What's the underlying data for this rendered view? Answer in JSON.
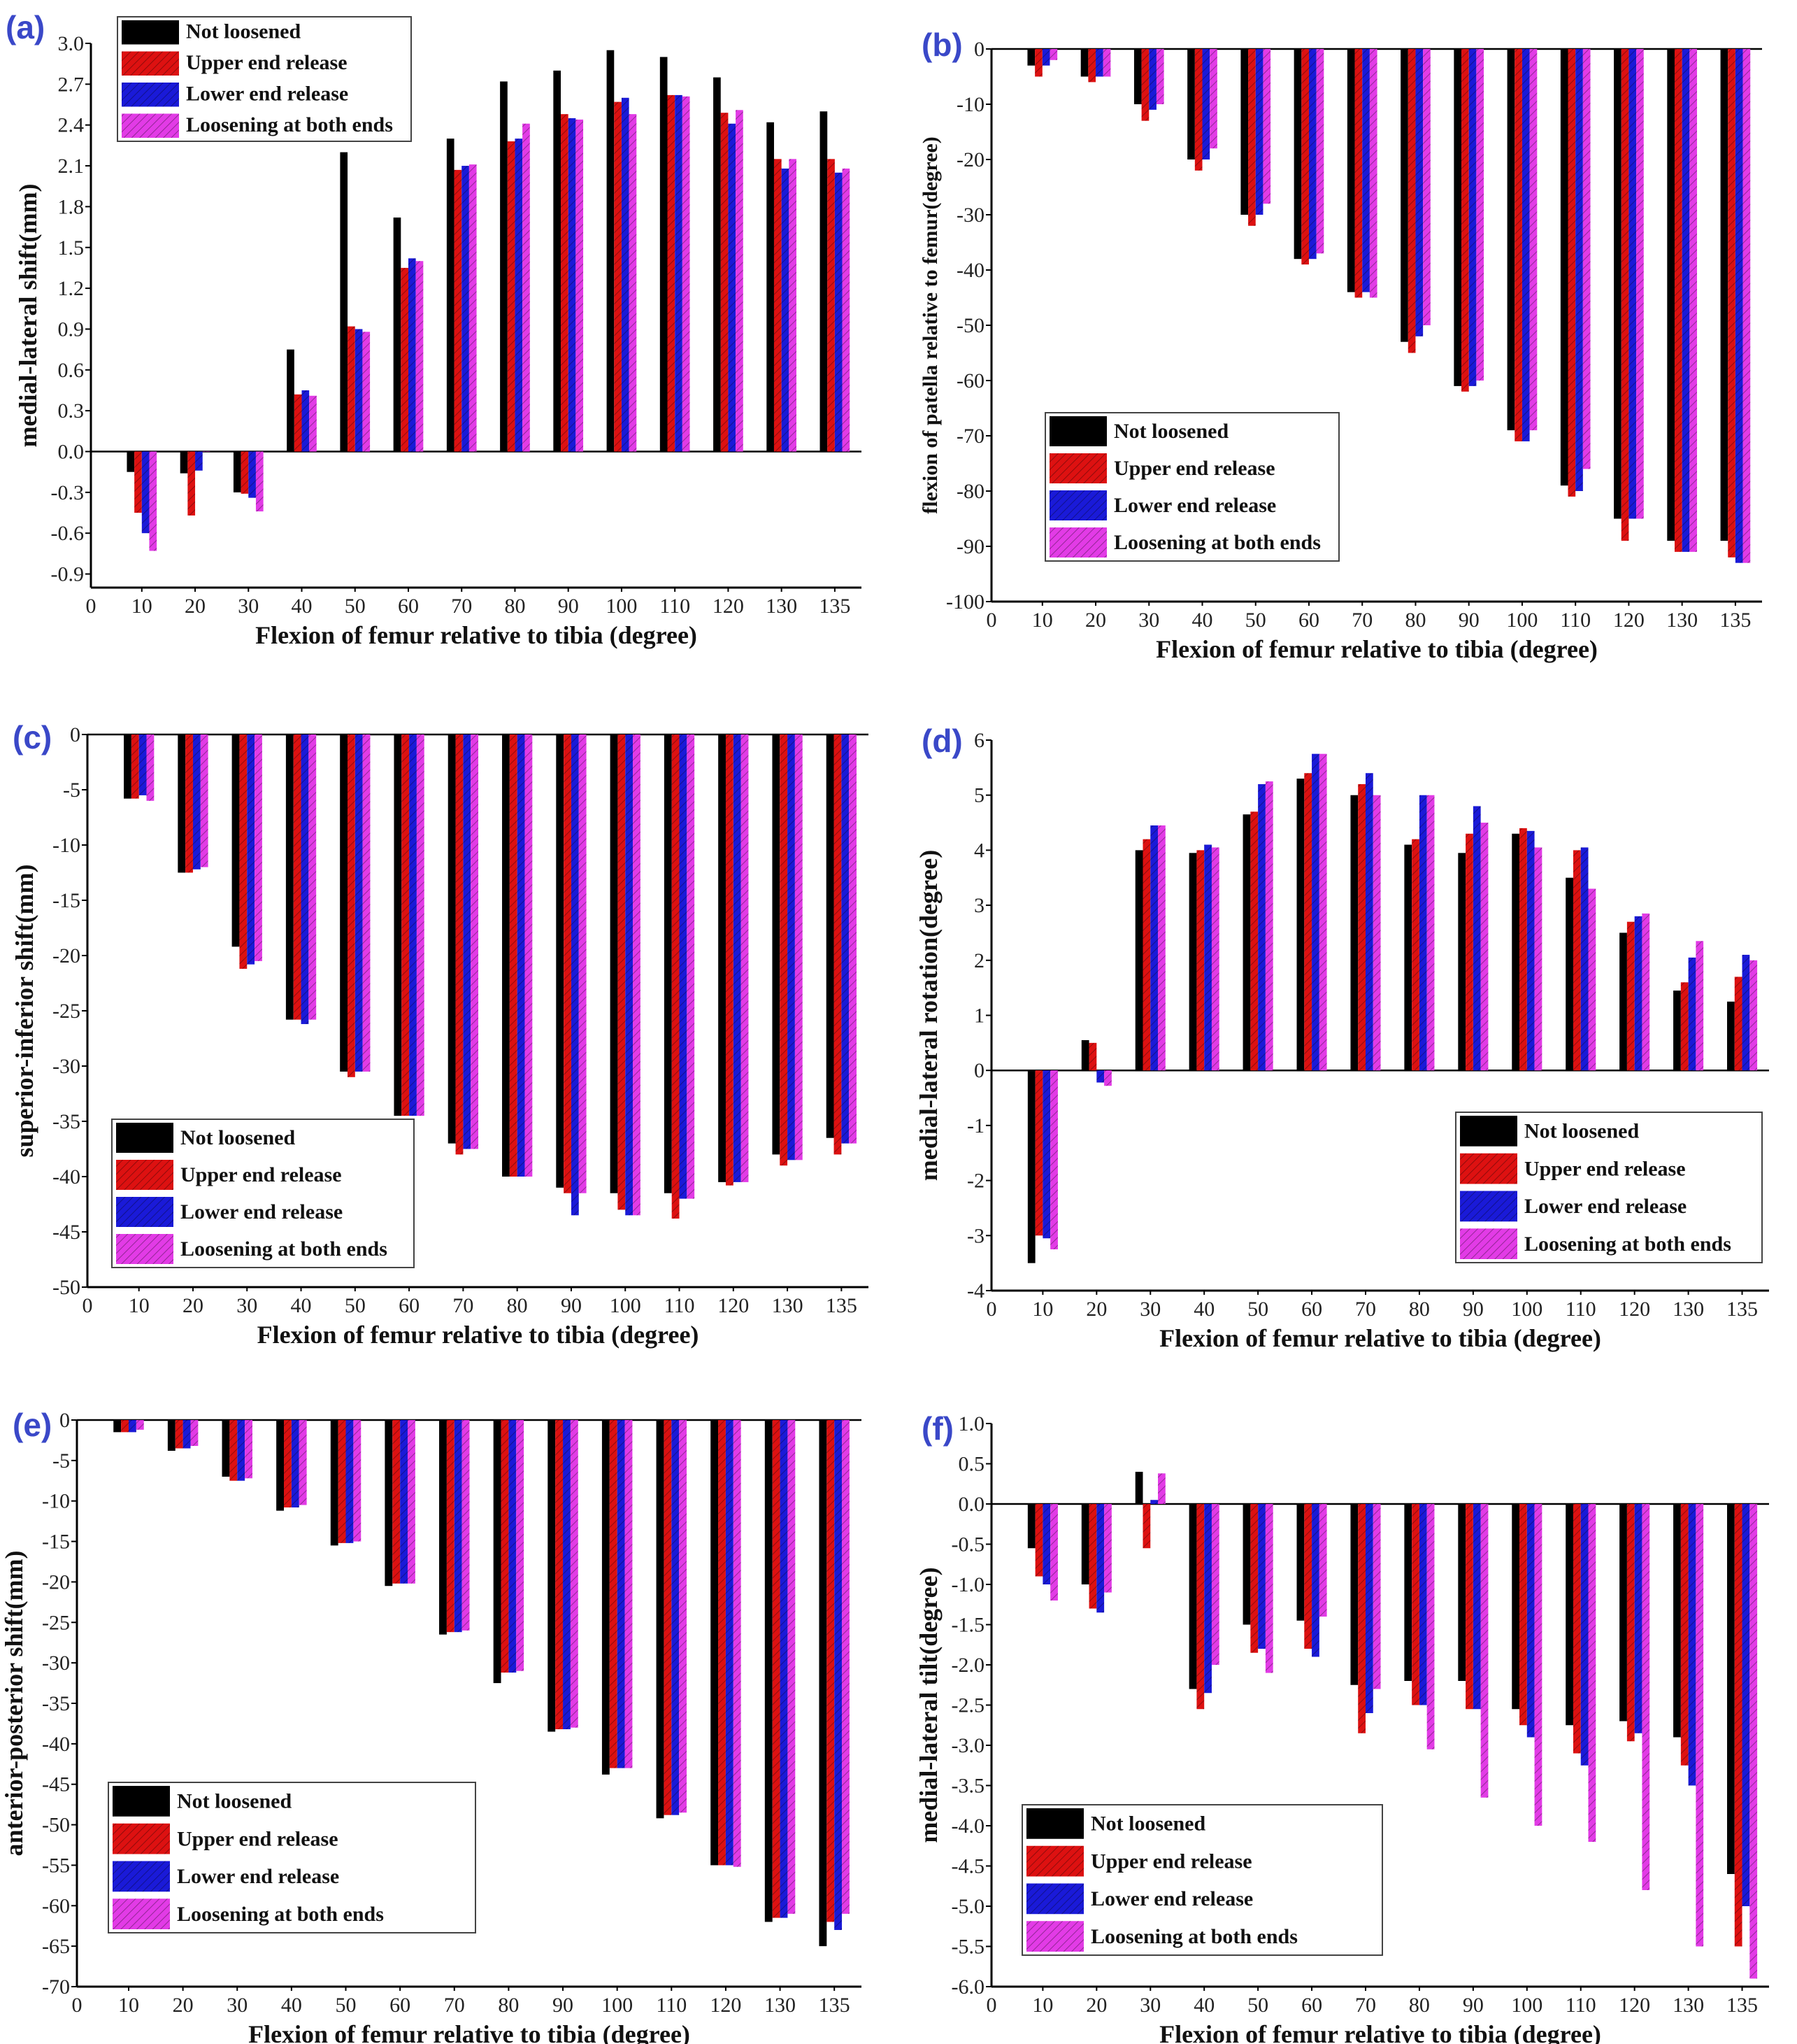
{
  "figure": {
    "series_names": [
      "Not loosened",
      "Upper end release",
      "Lower end release",
      "Loosening at both ends"
    ],
    "series_colors": [
      "#000000",
      "#dd1111",
      "#1a1ad8",
      "#e23be6"
    ],
    "xlabel": "Flexion of femur relative to tibia (degree)"
  },
  "chart_data": [
    {
      "panel": "(a)",
      "type": "bar",
      "ylabel": "medial-lateral shift(mm)",
      "xlabel": "Flexion of femur relative to tibia (degree)",
      "x_zero_label": "0",
      "categories": [
        "10",
        "20",
        "30",
        "40",
        "50",
        "60",
        "70",
        "80",
        "90",
        "100",
        "110",
        "120",
        "130",
        "135"
      ],
      "yticks": [
        "3.0",
        "2.7",
        "2.4",
        "2.1",
        "1.8",
        "1.5",
        "1.2",
        "0.9",
        "0.6",
        "0.3",
        "0.0",
        "-0.3",
        "-0.6",
        "-0.9"
      ],
      "ylim": [
        -1.0,
        3.0
      ],
      "legend_position": "top-left",
      "series": [
        {
          "name": "Not loosened",
          "values": [
            -0.15,
            -0.16,
            -0.3,
            0.75,
            2.2,
            1.72,
            2.3,
            2.72,
            2.8,
            2.95,
            2.9,
            2.75,
            2.42,
            2.5
          ]
        },
        {
          "name": "Upper end release",
          "values": [
            -0.45,
            -0.47,
            -0.31,
            0.42,
            0.92,
            1.35,
            2.07,
            2.28,
            2.48,
            2.57,
            2.62,
            2.49,
            2.15,
            2.15
          ]
        },
        {
          "name": "Lower end release",
          "values": [
            -0.6,
            -0.14,
            -0.34,
            0.45,
            0.9,
            1.42,
            2.1,
            2.3,
            2.45,
            2.6,
            2.62,
            2.41,
            2.08,
            2.05
          ]
        },
        {
          "name": "Loosening at both ends",
          "values": [
            -0.73,
            0.0,
            -0.44,
            0.41,
            0.88,
            1.4,
            2.11,
            2.41,
            2.44,
            2.48,
            2.61,
            2.51,
            2.15,
            2.08
          ]
        }
      ]
    },
    {
      "panel": "(b)",
      "type": "bar",
      "ylabel": "flexion of patella relative to femur(degree)",
      "xlabel": "Flexion of femur relative to tibia (degree)",
      "x_zero_label": "0",
      "categories": [
        "10",
        "20",
        "30",
        "40",
        "50",
        "60",
        "70",
        "80",
        "90",
        "100",
        "110",
        "120",
        "130",
        "135"
      ],
      "yticks": [
        "0",
        "-10",
        "-20",
        "-30",
        "-40",
        "-50",
        "-60",
        "-70",
        "-80",
        "-90",
        "-100"
      ],
      "ylim": [
        -100,
        0
      ],
      "legend_position": "bottom-left",
      "series": [
        {
          "name": "Not loosened",
          "values": [
            -3,
            -5,
            -10,
            -20,
            -30,
            -38,
            -44,
            -53,
            -61,
            -69,
            -79,
            -85,
            -89,
            -89
          ]
        },
        {
          "name": "Upper end release",
          "values": [
            -5,
            -6,
            -13,
            -22,
            -32,
            -39,
            -45,
            -55,
            -62,
            -71,
            -81,
            -89,
            -91,
            -92
          ]
        },
        {
          "name": "Lower end release",
          "values": [
            -3,
            -5,
            -11,
            -20,
            -30,
            -38,
            -44,
            -52,
            -61,
            -71,
            -80,
            -85,
            -91,
            -93
          ]
        },
        {
          "name": "Loosening at both ends",
          "values": [
            -2,
            -5,
            -10,
            -18,
            -28,
            -37,
            -45,
            -50,
            -60,
            -69,
            -76,
            -85,
            -91,
            -93
          ]
        }
      ]
    },
    {
      "panel": "(c)",
      "type": "bar",
      "ylabel": "superior-inferior shift(mm)",
      "xlabel": "Flexion of femur relative to tibia (degree)",
      "x_zero_label": "0",
      "categories": [
        "10",
        "20",
        "30",
        "40",
        "50",
        "60",
        "70",
        "80",
        "90",
        "100",
        "110",
        "120",
        "130",
        "135"
      ],
      "yticks": [
        "0",
        "-5",
        "-10",
        "-15",
        "-20",
        "-25",
        "-30",
        "-35",
        "-40",
        "-45",
        "-50"
      ],
      "ylim": [
        -50,
        0
      ],
      "legend_position": "bottom-left",
      "series": [
        {
          "name": "Not loosened",
          "values": [
            -5.8,
            -12.5,
            -19.2,
            -25.8,
            -30.5,
            -34.5,
            -37.0,
            -40.0,
            -41.0,
            -41.5,
            -41.5,
            -40.5,
            -38.0,
            -36.5
          ]
        },
        {
          "name": "Upper end release",
          "values": [
            -5.8,
            -12.5,
            -21.2,
            -25.8,
            -31.0,
            -34.5,
            -38.0,
            -40.0,
            -41.5,
            -43.0,
            -43.8,
            -40.8,
            -39.0,
            -38.0
          ]
        },
        {
          "name": "Lower end release",
          "values": [
            -5.5,
            -12.2,
            -20.8,
            -26.2,
            -30.5,
            -34.5,
            -37.5,
            -40.0,
            -43.5,
            -43.5,
            -42.0,
            -40.5,
            -38.5,
            -37.0
          ]
        },
        {
          "name": "Loosening at both ends",
          "values": [
            -6.0,
            -12.0,
            -20.5,
            -25.8,
            -30.5,
            -34.5,
            -37.5,
            -40.0,
            -41.5,
            -43.5,
            -42.0,
            -40.5,
            -38.5,
            -37.0
          ]
        }
      ]
    },
    {
      "panel": "(d)",
      "type": "bar",
      "ylabel": "medial-lateral rotation(degree)",
      "xlabel": "Flexion of femur relative to tibia (degree)",
      "x_zero_label": "0",
      "categories": [
        "10",
        "20",
        "30",
        "40",
        "50",
        "60",
        "70",
        "80",
        "90",
        "100",
        "110",
        "120",
        "130",
        "135"
      ],
      "yticks": [
        "6",
        "5",
        "4",
        "3",
        "2",
        "1",
        "0",
        "-1",
        "-2",
        "-3",
        "-4"
      ],
      "ylim": [
        -4,
        6
      ],
      "legend_position": "bottom-right",
      "series": [
        {
          "name": "Not loosened",
          "values": [
            -3.5,
            0.55,
            4.0,
            3.95,
            4.65,
            5.3,
            5.0,
            4.1,
            3.95,
            4.3,
            3.5,
            2.5,
            1.45,
            1.25
          ]
        },
        {
          "name": "Upper end release",
          "values": [
            -3.0,
            0.5,
            4.2,
            4.0,
            4.7,
            5.4,
            5.2,
            4.2,
            4.3,
            4.4,
            4.0,
            2.7,
            1.6,
            1.7
          ]
        },
        {
          "name": "Lower end release",
          "values": [
            -3.05,
            -0.22,
            4.45,
            4.1,
            5.2,
            5.75,
            5.4,
            5.0,
            4.8,
            4.35,
            4.05,
            2.8,
            2.05,
            2.1
          ]
        },
        {
          "name": "Loosening at both ends",
          "values": [
            -3.25,
            -0.28,
            4.45,
            4.05,
            5.25,
            5.75,
            5.0,
            5.0,
            4.5,
            4.05,
            3.3,
            2.85,
            2.35,
            2.0
          ]
        }
      ]
    },
    {
      "panel": "(e)",
      "type": "bar",
      "ylabel": "anterior-posterior shift(mm)",
      "xlabel": "Flexion of femur relative to tibia (degree)",
      "x_zero_label": "0",
      "categories": [
        "10",
        "20",
        "30",
        "40",
        "50",
        "60",
        "70",
        "80",
        "90",
        "100",
        "110",
        "120",
        "130",
        "135"
      ],
      "yticks": [
        "0",
        "-5",
        "-10",
        "-15",
        "-20",
        "-25",
        "-30",
        "-35",
        "-40",
        "-45",
        "-50",
        "-55",
        "-60",
        "-65",
        "-70"
      ],
      "ylim": [
        -70,
        0
      ],
      "legend_position": "bottom-left",
      "series": [
        {
          "name": "Not loosened",
          "values": [
            -1.5,
            -3.8,
            -7.0,
            -11.2,
            -15.5,
            -20.5,
            -26.5,
            -32.5,
            -38.5,
            -43.8,
            -49.2,
            -55.0,
            -62.0,
            -65.0
          ]
        },
        {
          "name": "Upper end release",
          "values": [
            -1.5,
            -3.5,
            -7.5,
            -10.8,
            -15.2,
            -20.2,
            -26.2,
            -31.2,
            -38.2,
            -43.0,
            -48.8,
            -55.0,
            -61.5,
            -62.0
          ]
        },
        {
          "name": "Lower end release",
          "values": [
            -1.5,
            -3.5,
            -7.5,
            -10.8,
            -15.2,
            -20.2,
            -26.2,
            -31.2,
            -38.2,
            -43.0,
            -48.8,
            -55.0,
            -61.5,
            -63.0
          ]
        },
        {
          "name": "Loosening at both ends",
          "values": [
            -1.2,
            -3.2,
            -7.2,
            -10.5,
            -15.0,
            -20.2,
            -26.0,
            -31.0,
            -38.0,
            -43.0,
            -48.5,
            -55.2,
            -61.0,
            -61.0
          ]
        }
      ]
    },
    {
      "panel": "(f)",
      "type": "bar",
      "ylabel": "medial-lateral tilt(degree)",
      "xlabel": "Flexion of femur relative to tibia (degree)",
      "x_zero_label": "0",
      "categories": [
        "10",
        "20",
        "30",
        "40",
        "50",
        "60",
        "70",
        "80",
        "90",
        "100",
        "110",
        "120",
        "130",
        "135"
      ],
      "yticks": [
        "1.0",
        "0.5",
        "0.0",
        "-0.5",
        "-1.0",
        "-1.5",
        "-2.0",
        "-2.5",
        "-3.0",
        "-3.5",
        "-4.0",
        "-4.5",
        "-5.0",
        "-5.5",
        "-6.0"
      ],
      "ylim": [
        -6.0,
        1.0
      ],
      "legend_position": "bottom-left",
      "series": [
        {
          "name": "Not loosened",
          "values": [
            -0.55,
            -1.0,
            0.4,
            -2.3,
            -1.5,
            -1.45,
            -2.25,
            -2.2,
            -2.2,
            -2.55,
            -2.75,
            -2.7,
            -2.9,
            -4.6
          ]
        },
        {
          "name": "Upper end release",
          "values": [
            -0.9,
            -1.3,
            -0.55,
            -2.55,
            -1.85,
            -1.8,
            -2.85,
            -2.5,
            -2.55,
            -2.75,
            -3.1,
            -2.95,
            -3.25,
            -5.5
          ]
        },
        {
          "name": "Lower end release",
          "values": [
            -1.0,
            -1.35,
            0.05,
            -2.35,
            -1.8,
            -1.9,
            -2.6,
            -2.5,
            -2.55,
            -2.9,
            -3.25,
            -2.85,
            -3.5,
            -5.0
          ]
        },
        {
          "name": "Loosening at both ends",
          "values": [
            -1.2,
            -1.1,
            0.38,
            -2.0,
            -2.1,
            -1.4,
            -2.3,
            -3.05,
            -3.65,
            -4.0,
            -4.2,
            -4.8,
            -5.5,
            -5.9
          ]
        }
      ]
    }
  ]
}
